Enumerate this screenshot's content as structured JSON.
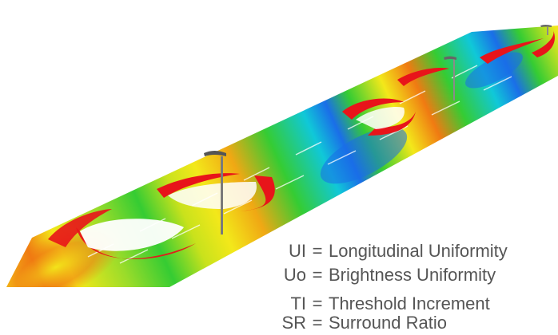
{
  "diagram": {
    "legend": [
      {
        "abbr": "UI",
        "eq": "=",
        "meaning": "Longitudinal Uniformity"
      },
      {
        "abbr": "Uo",
        "eq": "=",
        "meaning": "Brightness Uniformity"
      },
      {
        "abbr": "TI",
        "eq": "=",
        "meaning": "Threshold Increment"
      },
      {
        "abbr": "SR",
        "eq": "=",
        "meaning": "Surround Ratio"
      }
    ],
    "colors": {
      "high": "#e8141a",
      "upper": "#f07a12",
      "mid": "#f3e81a",
      "mid_low": "#35cc33",
      "low": "#10c8d8",
      "lowest": "#1a6ee8",
      "pole": "#7a7a7a"
    }
  }
}
